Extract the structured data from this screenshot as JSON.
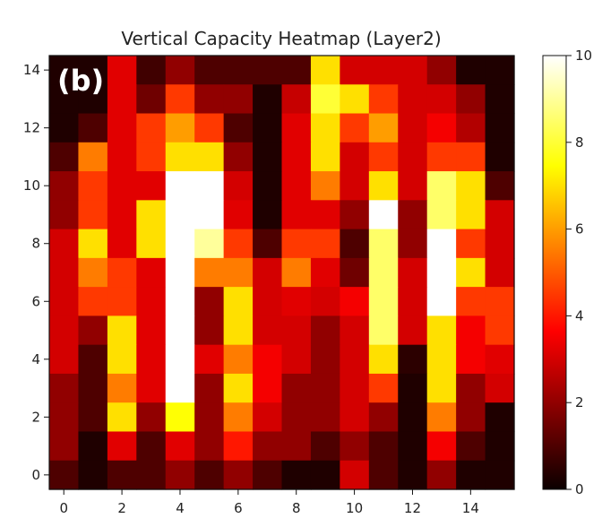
{
  "panel_label": "(b)",
  "chart_data": {
    "type": "heatmap",
    "title": "Vertical Capacity Heatmap (Layer2)",
    "xlabel": "",
    "ylabel": "",
    "colormap": "hot",
    "vmin": 0,
    "vmax": 10,
    "x_ticks": [
      "0",
      "2",
      "4",
      "6",
      "8",
      "10",
      "12",
      "14"
    ],
    "y_ticks": [
      "0",
      "2",
      "4",
      "6",
      "8",
      "10",
      "12",
      "14"
    ],
    "colorbar_ticks": [
      "0",
      "2",
      "4",
      "6",
      "8",
      "10"
    ],
    "grid": false,
    "rows_top_to_bottom": [
      [
        0.3,
        0.3,
        3.2,
        0.8,
        2.0,
        1.0,
        1.0,
        1.0,
        1.0,
        7.0,
        3.0,
        3.0,
        3.0,
        2.0,
        0.3,
        0.3
      ],
      [
        0.3,
        0.3,
        3.2,
        1.5,
        4.5,
        2.0,
        2.0,
        0.3,
        2.8,
        8.0,
        7.0,
        4.5,
        3.0,
        3.0,
        2.0,
        0.3
      ],
      [
        0.3,
        1.0,
        3.2,
        4.5,
        6.0,
        4.5,
        1.0,
        0.3,
        3.2,
        7.0,
        4.5,
        6.0,
        3.0,
        3.5,
        2.5,
        0.3
      ],
      [
        1.0,
        5.5,
        3.2,
        4.5,
        7.0,
        7.0,
        2.0,
        0.3,
        3.2,
        7.0,
        3.0,
        4.5,
        3.0,
        4.5,
        4.5,
        0.3
      ],
      [
        2.0,
        4.5,
        3.2,
        3.2,
        10.0,
        10.0,
        3.0,
        0.3,
        3.2,
        5.5,
        3.0,
        7.0,
        3.0,
        8.5,
        7.0,
        1.0
      ],
      [
        2.0,
        4.5,
        3.2,
        7.0,
        10.0,
        10.0,
        3.2,
        0.3,
        3.2,
        3.2,
        2.0,
        10.0,
        2.0,
        8.5,
        7.0,
        3.0
      ],
      [
        3.0,
        7.0,
        3.2,
        7.0,
        10.0,
        9.0,
        4.5,
        1.0,
        4.5,
        4.5,
        1.0,
        8.5,
        2.0,
        10.0,
        4.5,
        3.0
      ],
      [
        3.0,
        5.5,
        4.5,
        3.2,
        10.0,
        5.5,
        5.5,
        3.0,
        5.5,
        3.2,
        1.5,
        8.5,
        3.0,
        10.0,
        7.0,
        3.0
      ],
      [
        3.0,
        4.5,
        4.5,
        3.2,
        10.0,
        2.0,
        7.0,
        3.0,
        3.2,
        3.0,
        3.5,
        8.5,
        3.0,
        10.0,
        4.5,
        4.5
      ],
      [
        3.0,
        2.0,
        7.0,
        3.2,
        10.0,
        2.0,
        7.0,
        3.0,
        3.0,
        2.0,
        3.0,
        8.5,
        3.0,
        7.0,
        3.5,
        4.5
      ],
      [
        3.0,
        1.0,
        7.0,
        3.2,
        10.0,
        3.2,
        5.5,
        3.5,
        3.0,
        2.0,
        3.0,
        7.0,
        0.5,
        7.0,
        3.5,
        3.2
      ],
      [
        2.0,
        1.0,
        5.5,
        3.2,
        10.0,
        2.0,
        7.0,
        3.5,
        2.0,
        2.0,
        3.0,
        4.5,
        0.3,
        7.0,
        2.0,
        3.0
      ],
      [
        2.0,
        1.0,
        7.0,
        2.0,
        7.5,
        2.0,
        5.5,
        3.0,
        2.0,
        2.0,
        3.0,
        2.0,
        0.3,
        5.5,
        2.0,
        0.3
      ],
      [
        2.0,
        0.3,
        3.2,
        1.0,
        3.2,
        2.0,
        4.0,
        2.0,
        2.0,
        1.0,
        2.0,
        1.0,
        0.3,
        3.5,
        1.0,
        0.3
      ],
      [
        1.0,
        0.3,
        1.0,
        1.0,
        2.0,
        1.0,
        2.0,
        1.0,
        0.3,
        0.3,
        3.0,
        1.0,
        0.3,
        2.0,
        0.3,
        0.3
      ]
    ]
  }
}
